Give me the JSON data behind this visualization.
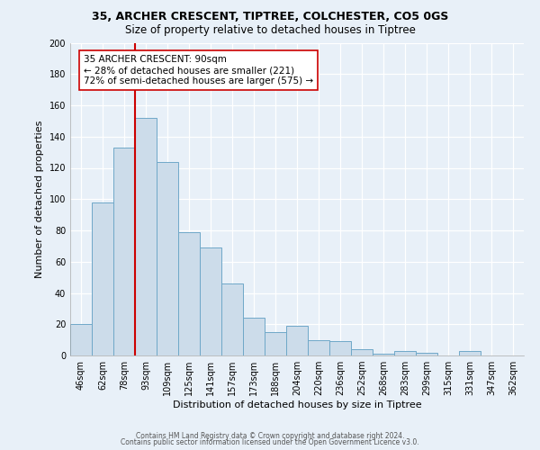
{
  "title1": "35, ARCHER CRESCENT, TIPTREE, COLCHESTER, CO5 0GS",
  "title2": "Size of property relative to detached houses in Tiptree",
  "xlabel": "Distribution of detached houses by size in Tiptree",
  "ylabel": "Number of detached properties",
  "bar_labels": [
    "46sqm",
    "62sqm",
    "78sqm",
    "93sqm",
    "109sqm",
    "125sqm",
    "141sqm",
    "157sqm",
    "173sqm",
    "188sqm",
    "204sqm",
    "220sqm",
    "236sqm",
    "252sqm",
    "268sqm",
    "283sqm",
    "299sqm",
    "315sqm",
    "331sqm",
    "347sqm",
    "362sqm"
  ],
  "bar_values": [
    20,
    98,
    133,
    152,
    124,
    79,
    69,
    46,
    24,
    15,
    19,
    10,
    9,
    4,
    1,
    3,
    2,
    0,
    3,
    0,
    0
  ],
  "bar_color": "#ccdcea",
  "bar_edge_color": "#6fa8c8",
  "vline_x": 3.5,
  "vline_color": "#cc0000",
  "annotation_title": "35 ARCHER CRESCENT: 90sqm",
  "annotation_line1": "← 28% of detached houses are smaller (221)",
  "annotation_line2": "72% of semi-detached houses are larger (575) →",
  "annotation_box_facecolor": "#ffffff",
  "annotation_box_edgecolor": "#cc0000",
  "ylim": [
    0,
    200
  ],
  "yticks": [
    0,
    20,
    40,
    60,
    80,
    100,
    120,
    140,
    160,
    180,
    200
  ],
  "footer1": "Contains HM Land Registry data © Crown copyright and database right 2024.",
  "footer2": "Contains public sector information licensed under the Open Government Licence v3.0.",
  "bg_color": "#e8f0f8",
  "plot_bg_color": "#e8f0f8",
  "grid_color": "#ffffff",
  "title1_fontsize": 9,
  "title2_fontsize": 8.5,
  "xlabel_fontsize": 8,
  "ylabel_fontsize": 8,
  "tick_fontsize": 7,
  "footer_fontsize": 5.5
}
